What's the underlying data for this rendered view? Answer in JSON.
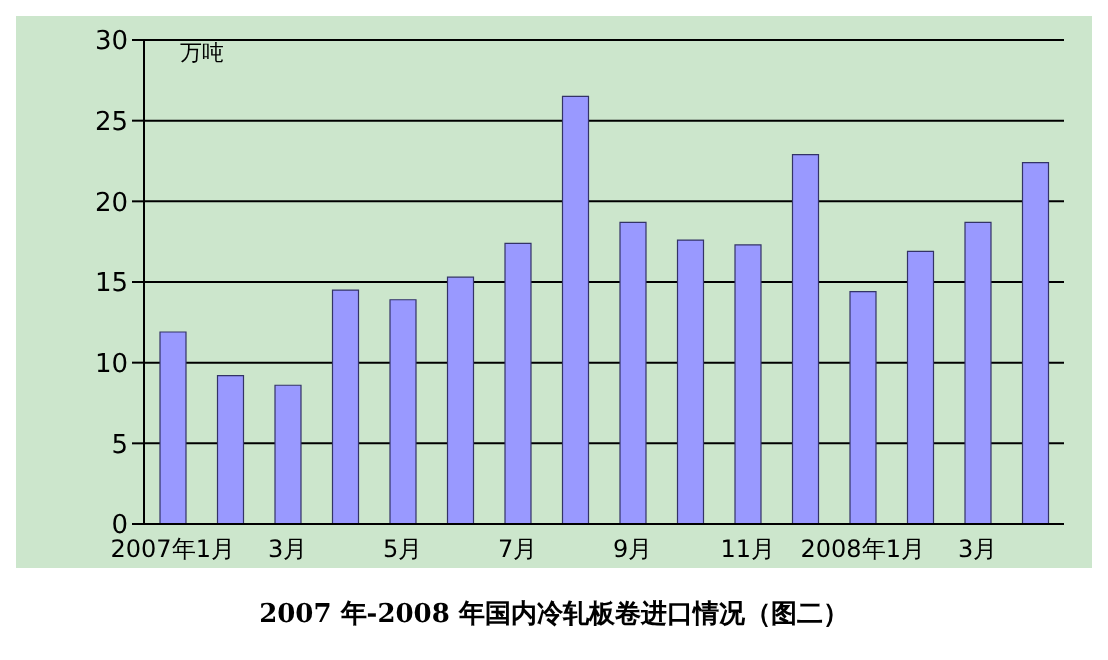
{
  "chart_data": {
    "type": "bar",
    "title": "2007 年-2008 年国内冷轧板卷进口情况（图二）",
    "ylabel": "万吨",
    "categories": [
      "2007年1月",
      null,
      "3月",
      null,
      "5月",
      null,
      "7月",
      null,
      "9月",
      null,
      "11月",
      null,
      "2008年1月",
      null,
      "3月",
      null
    ],
    "values": [
      11.9,
      9.2,
      8.6,
      14.5,
      13.9,
      15.3,
      17.4,
      26.5,
      18.7,
      17.6,
      17.3,
      22.9,
      14.4,
      16.9,
      18.7,
      22.4
    ],
    "color": "#9999ff",
    "ylim": [
      0,
      30
    ],
    "yticks": [
      0,
      5,
      10,
      15,
      20,
      25,
      30
    ],
    "grid": "y"
  }
}
